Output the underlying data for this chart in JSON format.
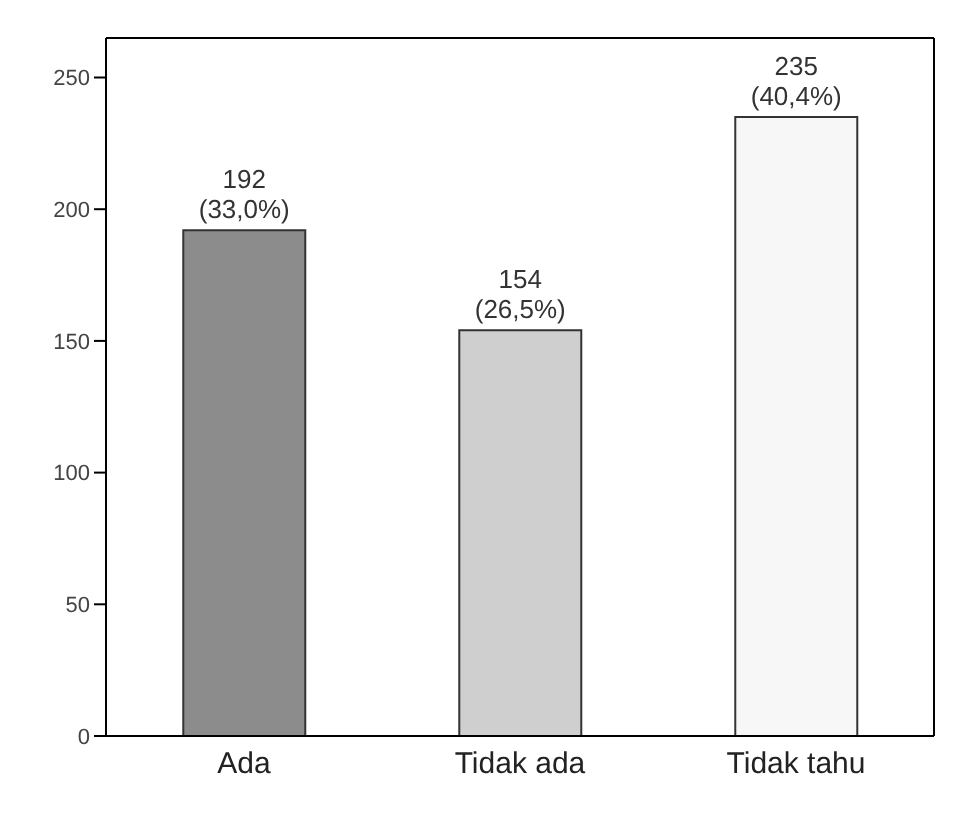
{
  "chart_data": {
    "type": "bar",
    "categories": [
      "Ada",
      "Tidak ada",
      "Tidak tahu"
    ],
    "values": [
      192,
      154,
      235
    ],
    "colors": [
      "#8c8c8c",
      "#cfcfcf",
      "#f7f7f7"
    ],
    "value_labels": [
      "192\n(33,0%)",
      "154\n(26,5%)",
      "235\n(40,4%)"
    ],
    "ylim": [
      0,
      265
    ],
    "yticks": [
      0,
      50,
      100,
      150,
      200,
      250
    ]
  }
}
